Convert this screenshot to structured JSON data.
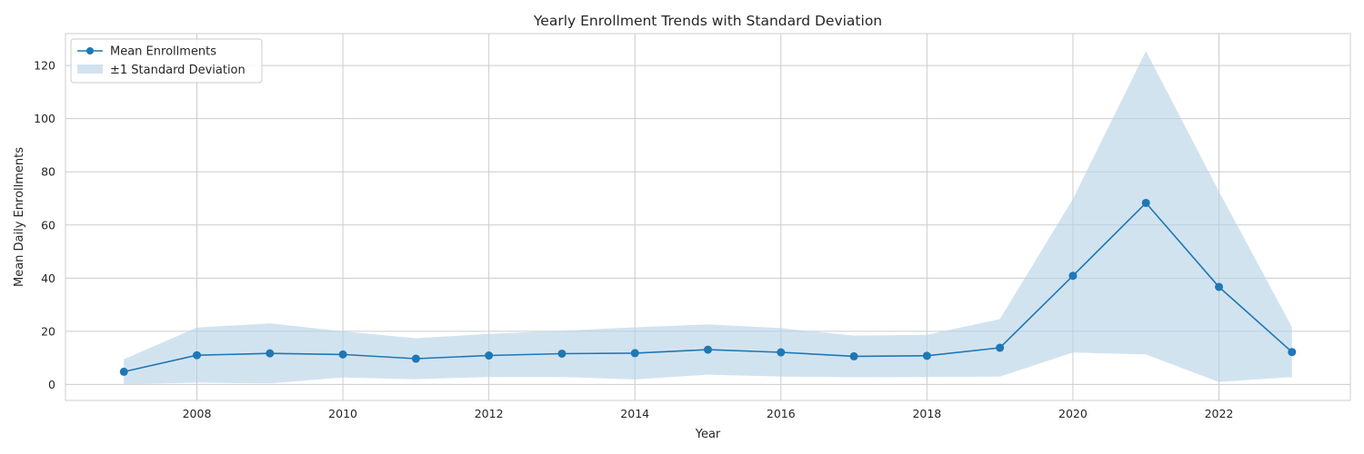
{
  "colors": {
    "line": "#1f77b4",
    "band": "#b4d1e6",
    "grid": "#cccccc",
    "frame": "#cccccc",
    "text": "#262626"
  },
  "chart_data": {
    "type": "line",
    "title": "Yearly Enrollment Trends with Standard Deviation",
    "xlabel": "Year",
    "ylabel": "Mean Daily Enrollments",
    "xlim": [
      2006.2,
      2023.8
    ],
    "ylim": [
      -6,
      132
    ],
    "grid": true,
    "legend_position": "top-left",
    "x_ticks": [
      2008,
      2010,
      2012,
      2014,
      2016,
      2018,
      2020,
      2022
    ],
    "y_ticks": [
      0,
      20,
      40,
      60,
      80,
      100,
      120
    ],
    "x": [
      2007,
      2008,
      2009,
      2010,
      2011,
      2012,
      2013,
      2014,
      2015,
      2016,
      2017,
      2018,
      2019,
      2020,
      2021,
      2022,
      2023
    ],
    "series": [
      {
        "name": "Mean Enrollments",
        "values": [
          4.8,
          11.0,
          11.7,
          11.3,
          9.7,
          10.9,
          11.6,
          11.8,
          13.1,
          12.1,
          10.6,
          10.8,
          13.8,
          40.9,
          68.3,
          36.7,
          12.2
        ]
      }
    ],
    "band": {
      "name": "±1 Standard Deviation",
      "lower": [
        0,
        0.7,
        0.4,
        2.6,
        2.0,
        2.8,
        2.8,
        1.9,
        3.7,
        3.0,
        2.7,
        2.8,
        3.0,
        12.0,
        11.3,
        0.9,
        2.8
      ],
      "upper": [
        9.5,
        21.4,
        23.0,
        20.0,
        17.4,
        19.0,
        20.2,
        21.5,
        22.6,
        21.2,
        18.4,
        18.7,
        24.6,
        69.8,
        125.4,
        72.6,
        21.6
      ]
    }
  }
}
